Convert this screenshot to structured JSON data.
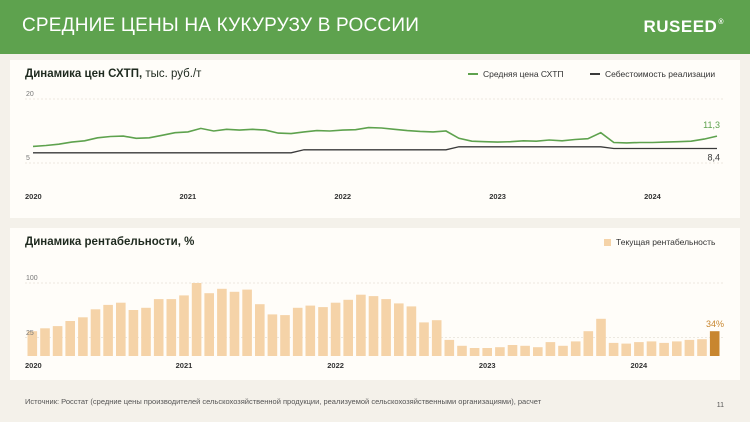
{
  "header": {
    "title": "СРЕДНИЕ ЦЕНЫ НА КУКУРУЗУ В РОССИИ",
    "logo": "RUSEED",
    "logo_mark": "®"
  },
  "colors": {
    "header_bg": "#5ea24e",
    "price_line": "#5ea24e",
    "cost_line": "#3a3a3a",
    "bar": "#f5d3a8",
    "bar_last": "#c8862f"
  },
  "chart_data": [
    {
      "type": "line",
      "title": "Динамика цен СХТП,",
      "title_unit": "тыс. руб./т",
      "ylim": [
        5,
        20
      ],
      "yticks": [
        5,
        20
      ],
      "x_labels": [
        "2020",
        "2021",
        "2022",
        "2023",
        "2024"
      ],
      "x_label_positions": [
        0,
        12,
        24,
        36,
        48
      ],
      "grid": true,
      "legend": "top-right",
      "series": [
        {
          "name": "Средняя цена СХТП",
          "values": [
            8.9,
            9.1,
            9.4,
            9.9,
            10.2,
            10.9,
            11.2,
            11.3,
            10.8,
            10.9,
            11.5,
            12.1,
            12.3,
            13.1,
            12.5,
            12.9,
            12.7,
            12.9,
            12.7,
            12.0,
            11.9,
            12.3,
            12.6,
            12.5,
            12.7,
            12.8,
            13.3,
            13.2,
            12.9,
            12.6,
            12.4,
            12.3,
            12.5,
            10.8,
            10.1,
            10.0,
            9.9,
            10.0,
            10.2,
            10.1,
            10.4,
            10.2,
            10.5,
            10.7,
            12.1,
            9.8,
            9.7,
            9.8,
            9.8,
            9.9,
            10.0,
            10.1,
            10.6,
            11.3
          ],
          "end_label": "11,3"
        },
        {
          "name": "Себестоимость реализации",
          "values": [
            7.4,
            7.4,
            7.4,
            7.4,
            7.4,
            7.4,
            7.4,
            7.4,
            7.4,
            7.4,
            7.4,
            7.4,
            7.4,
            7.4,
            7.4,
            7.4,
            7.4,
            7.4,
            7.4,
            7.4,
            7.4,
            8.1,
            8.1,
            8.1,
            8.1,
            8.1,
            8.1,
            8.1,
            8.1,
            8.1,
            8.1,
            8.1,
            8.1,
            8.8,
            8.8,
            8.8,
            8.8,
            8.8,
            8.8,
            8.8,
            8.8,
            8.8,
            8.8,
            8.8,
            8.8,
            8.4,
            8.4,
            8.4,
            8.4,
            8.4,
            8.4,
            8.4,
            8.4,
            8.4
          ],
          "end_label": "8,4"
        }
      ]
    },
    {
      "type": "bar",
      "title": "Динамика рентабельности, %",
      "ylim": [
        0,
        110
      ],
      "yticks": [
        25,
        100
      ],
      "x_labels": [
        "2020",
        "2021",
        "2022",
        "2023",
        "2024"
      ],
      "x_label_positions": [
        0,
        12,
        24,
        36,
        48
      ],
      "grid": true,
      "legend": "top-right",
      "series": [
        {
          "name": "Текущая рентабельность",
          "values": [
            34,
            38,
            41,
            48,
            53,
            64,
            70,
            73,
            63,
            66,
            78,
            78,
            83,
            100,
            86,
            92,
            88,
            91,
            71,
            57,
            56,
            66,
            69,
            67,
            73,
            77,
            84,
            82,
            78,
            72,
            68,
            46,
            49,
            22,
            14,
            11,
            11,
            12,
            15,
            14,
            12,
            19,
            14,
            20,
            34,
            51,
            18,
            17,
            19,
            20,
            18,
            20,
            22,
            23,
            34
          ],
          "end_label": "34%"
        }
      ]
    }
  ],
  "footer": {
    "source": "Источник: Росстат (средние цены производителей сельскохозяйственной продукции, реализуемой сельскохозяйственными организациями), расчет",
    "page": "11"
  }
}
